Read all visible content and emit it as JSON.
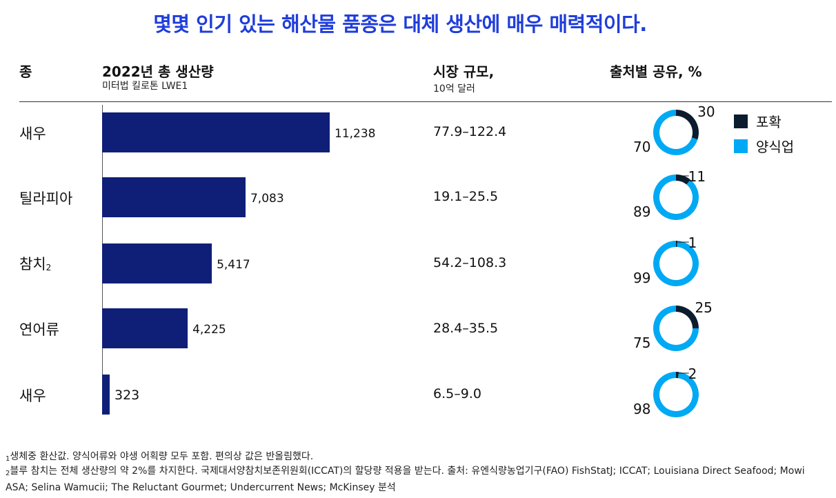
{
  "title": "몇몇 인기 있는 해산물 품종은 대체 생산에 매우 매력적이다.",
  "headers": {
    "species": "종",
    "production": "2022년 총 생산량",
    "production_sub": "미터법 킬로톤 LWE1",
    "market": "시장 규모,",
    "market_sub": "10억 달러",
    "share": "출처별 공유, %"
  },
  "legend": {
    "catch": "포확",
    "farm": "양식업"
  },
  "colors": {
    "bar": "#0f1f78",
    "catch": "#0b1c2e",
    "farm": "#00a9f4",
    "title": "#1f3ddb"
  },
  "rows": [
    {
      "species": "새우",
      "sup": "",
      "market": "77.9–122.4"
    },
    {
      "species": "틸라피아",
      "sup": "",
      "market": "19.1–25.5"
    },
    {
      "species": "참치",
      "sup": "2",
      "market": "54.2–108.3"
    },
    {
      "species": "연어류",
      "sup": "",
      "market": "28.4–35.5"
    },
    {
      "species": "새우",
      "sup": "",
      "market": "6.5–9.0"
    }
  ],
  "chart_data": [
    {
      "type": "bar",
      "orientation": "horizontal",
      "title": "2022년 총 생산량",
      "categories": [
        "새우",
        "틸라피아",
        "참치",
        "연어류",
        "새우"
      ],
      "values": [
        11238,
        7083,
        5417,
        4225,
        323
      ],
      "value_labels": [
        "11,238",
        "7,083",
        "5,417",
        "4,225",
        "323"
      ]
    },
    {
      "type": "pie",
      "title": "출처별 공유, %",
      "series": [
        {
          "name": "포확",
          "values": [
            30,
            11,
            1,
            25,
            2
          ]
        },
        {
          "name": "양식업",
          "values": [
            70,
            89,
            99,
            75,
            98
          ]
        }
      ]
    }
  ],
  "footnotes": [
    {
      "sup": "1",
      "text": "생체중 환산값. 양식어류와 야생 어획량 모두 포함. 편의상 값은 반올림했다."
    },
    {
      "sup": "2",
      "text": "블루 참치는 전체 생산량의 약 2%를 차지한다. 국제대서양참치보존위원회(ICCAT)의 할당량 적용을 받는다. 출처: 유엔식량농업기구(FAO) FishStatJ; ICCAT; Louisiana Direct Seafood; Mowi ASA; Selina Wamucii; The Reluctant Gourmet; Undercurrent News; McKinsey 분석"
    }
  ]
}
